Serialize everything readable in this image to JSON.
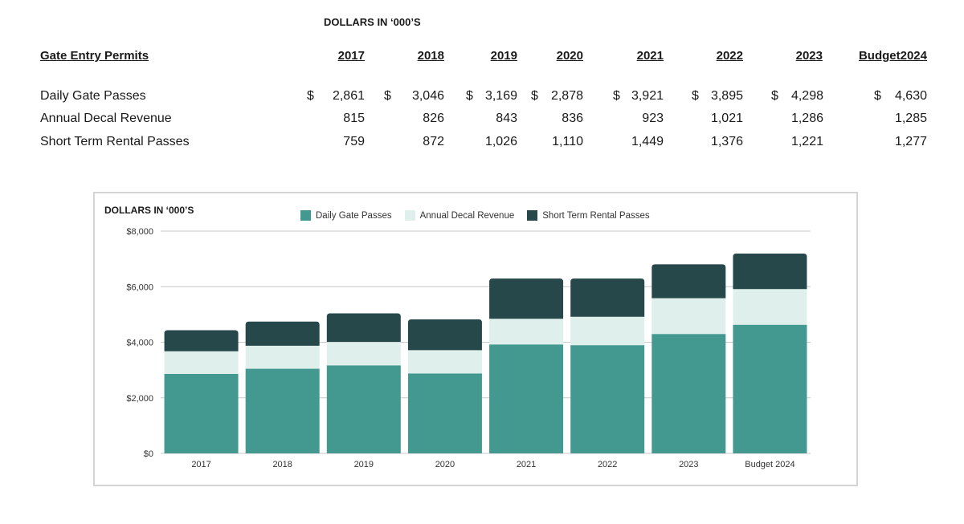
{
  "units_label": "DOLLARS IN ‘000’S",
  "table": {
    "row_header": "Gate Entry Permits",
    "columns": [
      "2017",
      "2018",
      "2019",
      "2020",
      "2021",
      "2022",
      "2023",
      "Budget2024"
    ],
    "currency_symbol": "$",
    "rows": [
      {
        "label": "Daily Gate Passes",
        "values": [
          "2,861",
          "3,046",
          "3,169",
          "2,878",
          "3,921",
          "3,895",
          "4,298",
          "4,630"
        ]
      },
      {
        "label": "Annual Decal Revenue",
        "values": [
          "815",
          "826",
          "843",
          "836",
          "923",
          "1,021",
          "1,286",
          "1,285"
        ]
      },
      {
        "label": "Short Term Rental Passes",
        "values": [
          "759",
          "872",
          "1,026",
          "1,110",
          "1,449",
          "1,376",
          "1,221",
          "1,277"
        ]
      }
    ]
  },
  "chart_data": {
    "type": "bar",
    "stacked": true,
    "title": "DOLLARS IN ‘000’S",
    "categories": [
      "2017",
      "2018",
      "2019",
      "2020",
      "2021",
      "2022",
      "2023",
      "Budget 2024"
    ],
    "series": [
      {
        "name": "Daily Gate Passes",
        "color": "#43998f",
        "values": [
          2861,
          3046,
          3169,
          2878,
          3921,
          3895,
          4298,
          4630
        ]
      },
      {
        "name": "Annual Decal Revenue",
        "color": "#dff0ec",
        "values": [
          815,
          826,
          843,
          836,
          923,
          1021,
          1286,
          1285
        ]
      },
      {
        "name": "Short Term Rental Passes",
        "color": "#26484a",
        "values": [
          759,
          872,
          1026,
          1110,
          1449,
          1376,
          1221,
          1277
        ]
      }
    ],
    "ylim": [
      0,
      8000
    ],
    "yticks": [
      "$0",
      "$2,000",
      "$4,000",
      "$6,000",
      "$8,000"
    ],
    "ytick_values": [
      0,
      2000,
      4000,
      6000,
      8000
    ],
    "grid": true,
    "legend_position": "top"
  }
}
